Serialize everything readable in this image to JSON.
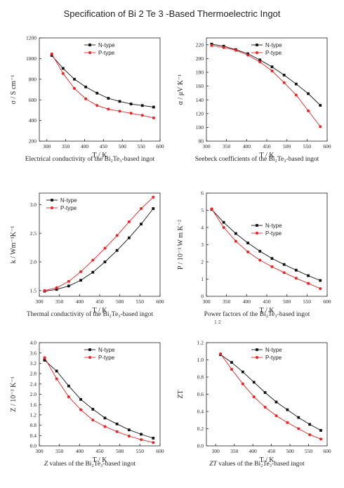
{
  "page": {
    "title": "Specification of Bi 2 Te 3 -Based Thermoelectric Ingot",
    "stray_mark": "1 2"
  },
  "colors": {
    "n_type": "#111111",
    "p_type": "#ee2222",
    "axis": "#222222"
  },
  "chart_data": [
    {
      "id": "conductivity",
      "type": "line",
      "caption": "Electrical conductivity of the Bi₂Te₃-based ingot",
      "xlabel": "T / K",
      "ylabel": "σ / S cm⁻¹",
      "xlim": [
        280,
        600
      ],
      "ylim": [
        200,
        1200
      ],
      "xticks": [
        300,
        350,
        400,
        450,
        500,
        550,
        600
      ],
      "yticks": [
        200,
        400,
        600,
        800,
        1000,
        1200
      ],
      "legend_position": "top-right",
      "series": [
        {
          "name": "N-type",
          "x": [
            313,
            343,
            373,
            403,
            433,
            463,
            493,
            523,
            553,
            583
          ],
          "y": [
            1030,
            905,
            800,
            725,
            665,
            615,
            585,
            560,
            545,
            530
          ]
        },
        {
          "name": "P-type",
          "x": [
            313,
            343,
            373,
            403,
            433,
            463,
            493,
            523,
            553,
            583
          ],
          "y": [
            1045,
            855,
            710,
            610,
            545,
            510,
            490,
            470,
            450,
            425
          ]
        }
      ]
    },
    {
      "id": "seebeck",
      "type": "line",
      "caption": "Seebeck coefficients of the Bi₂Te₃-based ingot",
      "xlabel": "T / K",
      "ylabel": "α / μV K⁻¹",
      "xlim": [
        300,
        600
      ],
      "ylim": [
        80,
        230
      ],
      "xticks": [
        300,
        350,
        400,
        450,
        500,
        550,
        600
      ],
      "yticks": [
        80,
        100,
        120,
        140,
        160,
        180,
        200,
        220
      ],
      "legend_position": "top-right",
      "series": [
        {
          "name": "N-type",
          "x": [
            313,
            343,
            373,
            403,
            433,
            463,
            493,
            523,
            553,
            583
          ],
          "y": [
            221,
            218,
            213,
            207,
            198,
            188,
            176,
            163,
            149,
            132
          ]
        },
        {
          "name": "P-type",
          "x": [
            313,
            343,
            373,
            403,
            433,
            463,
            493,
            523,
            553,
            583
          ],
          "y": [
            219,
            216,
            212,
            205,
            195,
            182,
            165,
            147,
            124,
            101
          ]
        }
      ]
    },
    {
      "id": "thermal",
      "type": "line",
      "caption": "Thermal conductivity of the Bi₂Te₃-based ingot",
      "xlabel": "T / K",
      "ylabel": "k / Wm⁻¹K⁻¹",
      "xlim": [
        300,
        600
      ],
      "ylim": [
        1.4,
        3.2
      ],
      "xticks": [
        300,
        350,
        400,
        450,
        500,
        550,
        600
      ],
      "yticks": [
        1.5,
        2.0,
        2.5,
        3.0
      ],
      "legend_position": "top-left",
      "series": [
        {
          "name": "N-type",
          "x": [
            313,
            343,
            373,
            403,
            433,
            463,
            493,
            523,
            553,
            583
          ],
          "y": [
            1.49,
            1.52,
            1.58,
            1.68,
            1.82,
            2.0,
            2.2,
            2.42,
            2.66,
            2.93
          ]
        },
        {
          "name": "P-type",
          "x": [
            313,
            343,
            373,
            403,
            433,
            463,
            493,
            523,
            553,
            583
          ],
          "y": [
            1.5,
            1.55,
            1.66,
            1.83,
            2.03,
            2.24,
            2.46,
            2.7,
            2.93,
            3.13
          ]
        }
      ]
    },
    {
      "id": "power",
      "type": "line",
      "caption": "Power factors of the Bi₂Te₃-based ingot",
      "xlabel": "T / K",
      "ylabel": "P / 10⁻³ W m K⁻²",
      "xlim": [
        300,
        600
      ],
      "ylim": [
        0,
        6
      ],
      "xticks": [
        300,
        350,
        400,
        450,
        500,
        550,
        600
      ],
      "yticks": [
        0,
        1,
        2,
        3,
        4,
        5,
        6
      ],
      "legend_position": "right",
      "series": [
        {
          "name": "N-type",
          "x": [
            313,
            343,
            373,
            403,
            433,
            463,
            493,
            523,
            553,
            583
          ],
          "y": [
            5.05,
            4.3,
            3.65,
            3.1,
            2.62,
            2.2,
            1.85,
            1.52,
            1.2,
            0.92
          ]
        },
        {
          "name": "P-type",
          "x": [
            313,
            343,
            373,
            403,
            433,
            463,
            493,
            523,
            553,
            583
          ],
          "y": [
            5.08,
            4.0,
            3.2,
            2.58,
            2.1,
            1.72,
            1.38,
            1.05,
            0.75,
            0.45
          ]
        }
      ]
    },
    {
      "id": "z-values",
      "type": "line",
      "caption_em": "Z",
      "caption": " values of the Bi₂Te₃-based ingot",
      "xlabel": "T / K",
      "ylabel": "Z / 10⁻³ K⁻¹",
      "xlim": [
        300,
        600
      ],
      "ylim": [
        0,
        4.0
      ],
      "xticks": [
        300,
        350,
        400,
        450,
        500,
        550,
        600
      ],
      "yticks": [
        0.0,
        0.4,
        0.8,
        1.2,
        1.6,
        2.0,
        2.4,
        2.8,
        3.2,
        3.6,
        4.0
      ],
      "legend_position": "top-right",
      "series": [
        {
          "name": "N-type",
          "x": [
            313,
            343,
            373,
            403,
            433,
            463,
            493,
            523,
            553,
            583
          ],
          "y": [
            3.32,
            2.9,
            2.32,
            1.8,
            1.42,
            1.08,
            0.85,
            0.62,
            0.45,
            0.3
          ]
        },
        {
          "name": "P-type",
          "x": [
            313,
            343,
            373,
            403,
            433,
            463,
            493,
            523,
            553,
            583
          ],
          "y": [
            3.42,
            2.6,
            1.9,
            1.4,
            1.0,
            0.75,
            0.55,
            0.38,
            0.24,
            0.13
          ]
        }
      ]
    },
    {
      "id": "zt-values",
      "type": "line",
      "caption_em": "ZT",
      "caption": " values of the Bi₂Te₃-based ingot",
      "xlabel": "T / K",
      "ylabel": "ZT",
      "xlim": [
        275,
        600
      ],
      "ylim": [
        0,
        1.2
      ],
      "xticks": [
        300,
        350,
        400,
        450,
        500,
        550,
        600
      ],
      "yticks": [
        0.0,
        0.2,
        0.4,
        0.6,
        0.8,
        1.0,
        1.2
      ],
      "legend_position": "top-right",
      "series": [
        {
          "name": "N-type",
          "x": [
            313,
            343,
            373,
            403,
            433,
            463,
            493,
            523,
            553,
            583
          ],
          "y": [
            1.06,
            0.97,
            0.86,
            0.74,
            0.62,
            0.51,
            0.42,
            0.33,
            0.25,
            0.18
          ]
        },
        {
          "name": "P-type",
          "x": [
            313,
            343,
            373,
            403,
            433,
            463,
            493,
            523,
            553,
            583
          ],
          "y": [
            1.07,
            0.89,
            0.72,
            0.57,
            0.45,
            0.35,
            0.27,
            0.2,
            0.13,
            0.08
          ]
        }
      ]
    }
  ]
}
